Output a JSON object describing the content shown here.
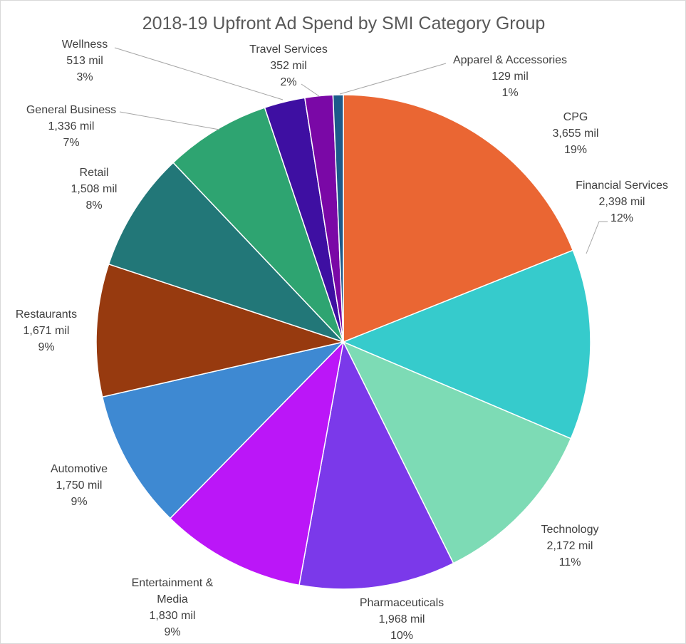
{
  "chart_data": {
    "type": "pie",
    "title": "2018-19 Upfront Ad Spend by SMI Category Group",
    "unit_suffix": "mil",
    "slices": [
      {
        "name": "CPG",
        "value": 3655,
        "value_label": "3,655 mil",
        "percent_label": "19%",
        "color": "#ea6633"
      },
      {
        "name": "Financial Services",
        "value": 2398,
        "value_label": "2,398 mil",
        "percent_label": "12%",
        "color": "#36cbcc"
      },
      {
        "name": "Technology",
        "value": 2172,
        "value_label": "2,172 mil",
        "percent_label": "11%",
        "color": "#7ddbb5"
      },
      {
        "name": "Pharmaceuticals",
        "value": 1968,
        "value_label": "1,968 mil",
        "percent_label": "10%",
        "color": "#7b39ea"
      },
      {
        "name": "Entertainment & Media",
        "name_lines": [
          "Entertainment &",
          "Media"
        ],
        "value": 1830,
        "value_label": "1,830 mil",
        "percent_label": "9%",
        "color": "#bb16f8"
      },
      {
        "name": "Automotive",
        "value": 1750,
        "value_label": "1,750 mil",
        "percent_label": "9%",
        "color": "#3e89d2"
      },
      {
        "name": "Restaurants",
        "value": 1671,
        "value_label": "1,671 mil",
        "percent_label": "9%",
        "color": "#973a0f"
      },
      {
        "name": "Retail",
        "value": 1508,
        "value_label": "1,508 mil",
        "percent_label": "8%",
        "color": "#227778"
      },
      {
        "name": "General Business",
        "value": 1336,
        "value_label": "1,336 mil",
        "percent_label": "7%",
        "color": "#2ea471"
      },
      {
        "name": "Wellness",
        "value": 513,
        "value_label": "513 mil",
        "percent_label": "3%",
        "color": "#3e0fa2"
      },
      {
        "name": "Travel Services",
        "value": 352,
        "value_label": "352 mil",
        "percent_label": "2%",
        "color": "#7a08a6"
      },
      {
        "name": "Apparel & Accessories",
        "value": 129,
        "value_label": "129 mil",
        "percent_label": "1%",
        "color": "#1c5a8a"
      }
    ],
    "start_angle_deg": 0,
    "direction": "clockwise",
    "legend": "none",
    "label_style": "outside with leader lines for small slices"
  }
}
